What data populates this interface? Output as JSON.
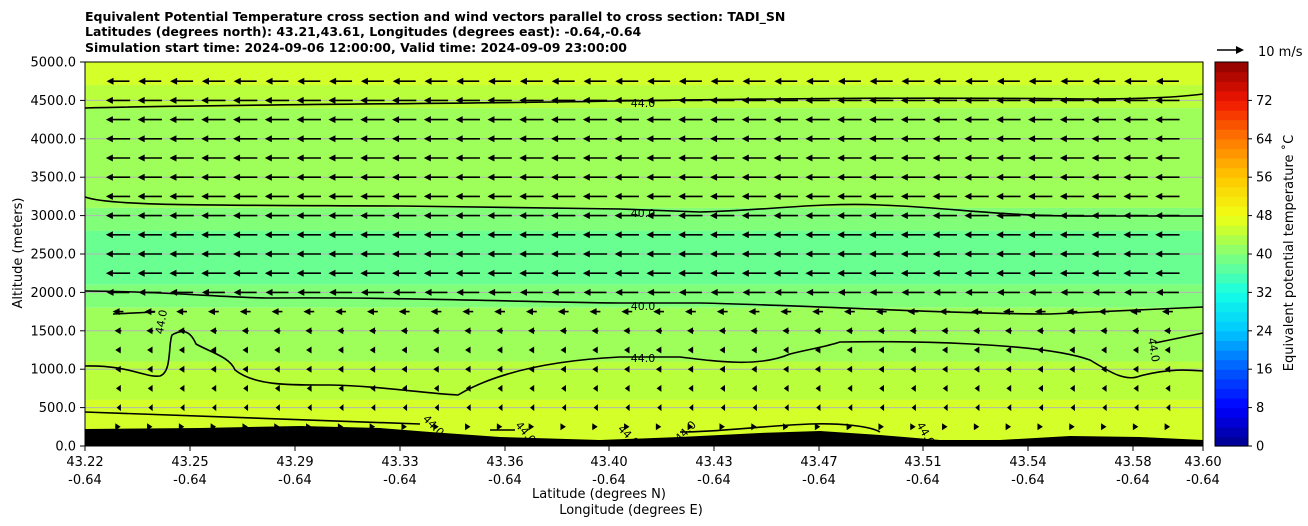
{
  "chart_data": {
    "type": "heatmap",
    "title_lines": [
      "Equivalent Potential Temperature cross section and wind vectors parallel to cross section: TADI_SN",
      "Latitudes (degrees north): 43.21,43.61, Longitudes (degrees east): -0.64,-0.64",
      "Simulation start time: 2024-09-06 12:00:00, Valid time: 2024-09-09 23:00:00"
    ],
    "ylabel": "Altitude (meters)",
    "xlabel": "Latitude (degrees N)",
    "xlabel2": "Longitude (degrees E)",
    "ylim": [
      0,
      5000
    ],
    "yticks": [
      "0.0",
      "500.0",
      "1000.0",
      "1500.0",
      "2000.0",
      "2500.0",
      "3000.0",
      "3500.0",
      "4000.0",
      "4500.0",
      "5000.0"
    ],
    "xtick_lat": [
      "43.22",
      "43.25",
      "43.29",
      "43.33",
      "43.36",
      "43.40",
      "43.43",
      "43.47",
      "43.51",
      "43.54",
      "43.58",
      "43.60"
    ],
    "xtick_lon": [
      "-0.64",
      "-0.64",
      "-0.64",
      "-0.64",
      "-0.64",
      "-0.64",
      "-0.64",
      "-0.64",
      "-0.64",
      "-0.64",
      "-0.64",
      "-0.64"
    ],
    "grid": "horizontal",
    "colorbar": {
      "label": "Equivalent potential temperature ˚C",
      "range": [
        0,
        80
      ],
      "ticks": [
        "0",
        "8",
        "16",
        "24",
        "32",
        "40",
        "48",
        "56",
        "64",
        "72"
      ]
    },
    "quiver_key": "10 m/s",
    "contour_labels": [
      "44.0",
      "40.0",
      "40.0",
      "44.0",
      "44.0",
      "44.0",
      "44.0",
      "44.0",
      "44.0",
      "44.0",
      "44.0"
    ],
    "contour_levels": [
      40,
      44
    ],
    "fill_bands": [
      {
        "altitude_range": [
          4700,
          5000
        ],
        "theta_e": 46
      },
      {
        "altitude_range": [
          4400,
          4700
        ],
        "theta_e": 44
      },
      {
        "altitude_range": [
          3100,
          4400
        ],
        "theta_e": 42
      },
      {
        "altitude_range": [
          2800,
          3100
        ],
        "theta_e": 40
      },
      {
        "altitude_range": [
          2100,
          2800
        ],
        "theta_e": 38
      },
      {
        "altitude_range": [
          1800,
          2100
        ],
        "theta_e": 40
      },
      {
        "altitude_range": [
          1100,
          1800
        ],
        "theta_e": 42
      },
      {
        "altitude_range": [
          600,
          1100
        ],
        "theta_e": 44
      },
      {
        "altitude_range": [
          0,
          600
        ],
        "theta_e": 46
      }
    ],
    "wind_rows": [
      {
        "altitude": 4750,
        "u": -8.5
      },
      {
        "altitude": 4500,
        "u": -9
      },
      {
        "altitude": 4250,
        "u": -9
      },
      {
        "altitude": 4000,
        "u": -9
      },
      {
        "altitude": 3750,
        "u": -9
      },
      {
        "altitude": 3500,
        "u": -9
      },
      {
        "altitude": 3250,
        "u": -9
      },
      {
        "altitude": 3000,
        "u": -9
      },
      {
        "altitude": 2750,
        "u": -9
      },
      {
        "altitude": 2500,
        "u": -9
      },
      {
        "altitude": 2250,
        "u": -9
      },
      {
        "altitude": 2000,
        "u": -8.5
      },
      {
        "altitude": 1750,
        "u": -4
      },
      {
        "altitude": 1500,
        "u": -2.5
      },
      {
        "altitude": 1250,
        "u": -2
      },
      {
        "altitude": 1000,
        "u": -2
      },
      {
        "altitude": 750,
        "u": -1.5
      },
      {
        "altitude": 500,
        "u": -1
      },
      {
        "altitude": 250,
        "u": 2
      }
    ]
  }
}
